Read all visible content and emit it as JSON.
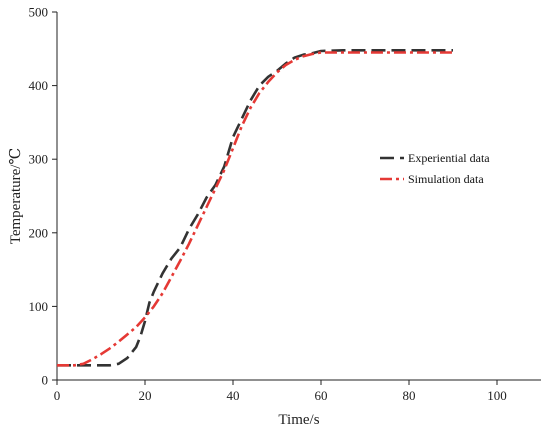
{
  "chart_data": {
    "type": "line",
    "title": "",
    "xlabel": "Time/s",
    "ylabel": "Temperature/℃",
    "xlim": [
      0,
      110
    ],
    "ylim": [
      0,
      500
    ],
    "xticks": [
      0,
      20,
      40,
      60,
      80,
      100
    ],
    "yticks": [
      0,
      100,
      200,
      300,
      400,
      500
    ],
    "grid": false,
    "legend_position": "right",
    "series": [
      {
        "name": "Experiential data",
        "color": "#333333",
        "dash": "long-dash",
        "x": [
          0,
          4,
          8,
          12,
          14,
          16,
          18,
          19,
          20,
          21,
          22,
          24,
          26,
          28,
          30,
          32,
          34,
          36,
          38,
          40,
          42,
          44,
          46,
          48,
          50,
          52,
          54,
          56,
          58,
          60,
          65,
          70,
          75,
          80,
          85,
          90
        ],
        "y": [
          20,
          20,
          20,
          20,
          22,
          30,
          45,
          60,
          80,
          105,
          120,
          145,
          165,
          180,
          205,
          225,
          248,
          265,
          290,
          330,
          355,
          380,
          400,
          412,
          420,
          430,
          438,
          442,
          444,
          447,
          448,
          448,
          448,
          448,
          448,
          448
        ]
      },
      {
        "name": "Simulation data",
        "color": "#e53935",
        "dash": "dash-dot",
        "x": [
          0,
          4,
          6,
          8,
          10,
          12,
          14,
          16,
          18,
          20,
          22,
          24,
          26,
          28,
          30,
          32,
          34,
          36,
          38,
          40,
          42,
          44,
          46,
          48,
          50,
          52,
          54,
          56,
          58,
          60,
          65,
          70,
          75,
          80,
          85,
          90
        ],
        "y": [
          20,
          20,
          22,
          28,
          35,
          43,
          52,
          62,
          72,
          85,
          100,
          118,
          140,
          162,
          185,
          210,
          235,
          260,
          285,
          315,
          345,
          370,
          390,
          405,
          418,
          428,
          435,
          440,
          443,
          445,
          445,
          445,
          445,
          445,
          445,
          445
        ]
      }
    ]
  }
}
